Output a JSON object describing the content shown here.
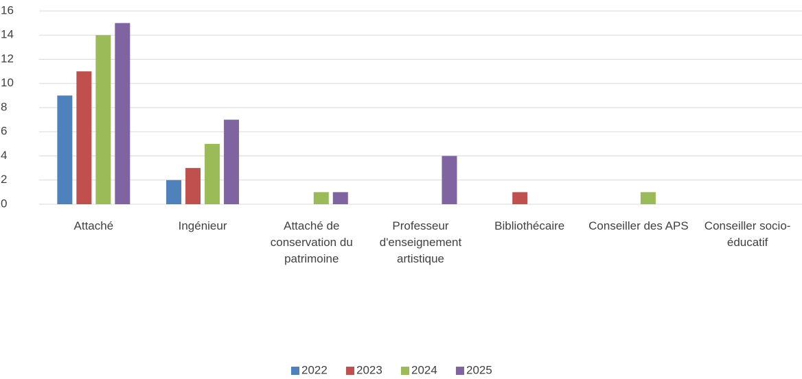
{
  "chart_data": {
    "type": "bar",
    "categories": [
      "Attaché",
      "Ingénieur",
      "Attaché de conservation du patrimoine",
      "Professeur d'enseignement artistique",
      "Bibliothécaire",
      "Conseiller des APS",
      "Conseiller socio-éducatif"
    ],
    "series": [
      {
        "name": "2022",
        "color": "#4f81bd",
        "values": [
          9,
          2,
          0,
          0,
          0,
          0,
          0
        ]
      },
      {
        "name": "2023",
        "color": "#c0504d",
        "values": [
          11,
          3,
          0,
          0,
          1,
          0,
          0
        ]
      },
      {
        "name": "2024",
        "color": "#9bbb59",
        "values": [
          14,
          5,
          1,
          0,
          0,
          1,
          0
        ]
      },
      {
        "name": "2025",
        "color": "#8064a2",
        "values": [
          15,
          7,
          1,
          4,
          0,
          0,
          0
        ]
      }
    ],
    "ylim": [
      0,
      16
    ],
    "yticks": [
      0,
      2,
      4,
      6,
      8,
      10,
      12,
      14,
      16
    ],
    "grid": true,
    "legend": "bottom"
  }
}
